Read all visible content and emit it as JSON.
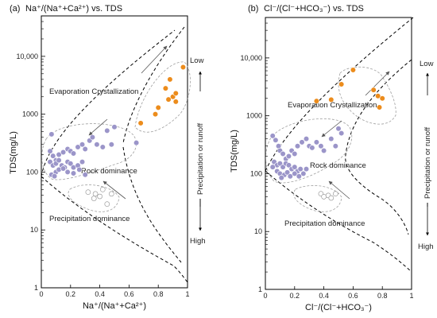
{
  "colors": {
    "evaporation": "#ec8c1c",
    "rock": "#9b95c9",
    "precipitation": "#ffffff",
    "precipitation_stroke": "#8f8f8f",
    "envelope": "#9a9a9a"
  },
  "chart_data": [
    {
      "type": "scatter",
      "panel_label": "(a)",
      "title": "Na⁺/(Na⁺+Ca²⁺) vs. TDS",
      "xlabel": "Na⁺/(Na⁺+Ca²⁺)",
      "ylabel": "TDS(mg/L)",
      "x_scale": "linear",
      "y_scale": "log",
      "xlim": [
        0,
        1
      ],
      "ylim": [
        1,
        50000
      ],
      "xticks": [
        0,
        0.2,
        0.4,
        0.6,
        0.8,
        1
      ],
      "xtick_labels": [
        "0",
        "0.2",
        "0.4",
        "0.6",
        "0.8",
        "1"
      ],
      "yticks": [
        1,
        10,
        100,
        1000,
        10000
      ],
      "ytick_labels": [
        "1",
        "10",
        "100",
        "1000",
        "10,000"
      ],
      "series": [
        {
          "key": "evaporation",
          "x": [
            0.97,
            0.88,
            0.9,
            0.92,
            0.87,
            0.8,
            0.78,
            0.85,
            0.92,
            0.68
          ],
          "y": [
            6500,
            4000,
            2000,
            2300,
            1800,
            1300,
            1000,
            2800,
            1650,
            700
          ]
        },
        {
          "key": "rock",
          "x": [
            0.07,
            0.06,
            0.08,
            0.1,
            0.12,
            0.15,
            0.18,
            0.2,
            0.22,
            0.25,
            0.28,
            0.3,
            0.33,
            0.35,
            0.38,
            0.42,
            0.45,
            0.48,
            0.5,
            0.06,
            0.08,
            0.1,
            0.12,
            0.14,
            0.16,
            0.18,
            0.2,
            0.22,
            0.25,
            0.28,
            0.1,
            0.12,
            0.15,
            0.18,
            0.22,
            0.26,
            0.3,
            0.65,
            0.07,
            0.09
          ],
          "y": [
            450,
            230,
            190,
            160,
            200,
            220,
            250,
            230,
            210,
            270,
            300,
            250,
            350,
            400,
            300,
            270,
            520,
            300,
            600,
            150,
            130,
            140,
            160,
            130,
            120,
            150,
            140,
            120,
            130,
            150,
            100,
            110,
            115,
            100,
            95,
            110,
            90,
            320,
            90,
            85
          ]
        },
        {
          "key": "precipitation",
          "x": [
            0.32,
            0.37,
            0.42,
            0.48,
            0.4,
            0.45,
            0.36
          ],
          "y": [
            45,
            42,
            50,
            42,
            38,
            28,
            35
          ]
        }
      ],
      "annotations": [
        "Evaporation Crystallization",
        "Rock dominance",
        "Precipitation dominance",
        "Low",
        "High",
        "Precipitation or runoff"
      ]
    },
    {
      "type": "scatter",
      "panel_label": "(b)",
      "title": "Cl⁻/(Cl⁻+HCO₃⁻) vs. TDS",
      "xlabel": "Cl⁻/(Cl⁻+HCO₃⁻)",
      "ylabel": "TDS(mg/L)",
      "x_scale": "linear",
      "y_scale": "log",
      "xlim": [
        0,
        1
      ],
      "ylim": [
        1,
        50000
      ],
      "xticks": [
        0,
        0.2,
        0.4,
        0.6,
        0.8,
        1
      ],
      "xtick_labels": [
        "0",
        "0.2",
        "0.4",
        "0.6",
        "0.8",
        "1"
      ],
      "yticks": [
        1,
        10,
        100,
        1000,
        10000
      ],
      "ytick_labels": [
        "1",
        "10",
        "100",
        "1000",
        "10,000"
      ],
      "series": [
        {
          "key": "evaporation",
          "x": [
            0.6,
            0.52,
            0.74,
            0.77,
            0.8,
            0.78,
            0.35,
            0.45
          ],
          "y": [
            6200,
            3500,
            2800,
            2200,
            2000,
            1400,
            1800,
            1900
          ]
        },
        {
          "key": "rock",
          "x": [
            0.05,
            0.07,
            0.09,
            0.1,
            0.12,
            0.14,
            0.16,
            0.18,
            0.2,
            0.22,
            0.25,
            0.28,
            0.3,
            0.32,
            0.35,
            0.38,
            0.4,
            0.45,
            0.5,
            0.52,
            0.06,
            0.08,
            0.1,
            0.12,
            0.14,
            0.16,
            0.18,
            0.2,
            0.22,
            0.24,
            0.26,
            0.08,
            0.1,
            0.13,
            0.15,
            0.17,
            0.2,
            0.23,
            0.05,
            0.11,
            0.28,
            0.48
          ],
          "y": [
            450,
            380,
            300,
            250,
            220,
            180,
            200,
            250,
            220,
            300,
            350,
            400,
            300,
            280,
            350,
            300,
            250,
            400,
            600,
            500,
            160,
            140,
            150,
            130,
            150,
            140,
            120,
            130,
            110,
            120,
            100,
            110,
            100,
            95,
            105,
            90,
            100,
            90,
            130,
            85,
            120,
            300
          ]
        },
        {
          "key": "precipitation",
          "x": [
            0.38,
            0.43,
            0.48,
            0.45,
            0.4
          ],
          "y": [
            45,
            42,
            45,
            38,
            40
          ]
        }
      ],
      "annotations": [
        "Evaporation  Crystallization",
        "Rock dominance",
        "Precipitation dominance",
        "Low",
        "High",
        "Precipitation or runoff"
      ]
    }
  ]
}
